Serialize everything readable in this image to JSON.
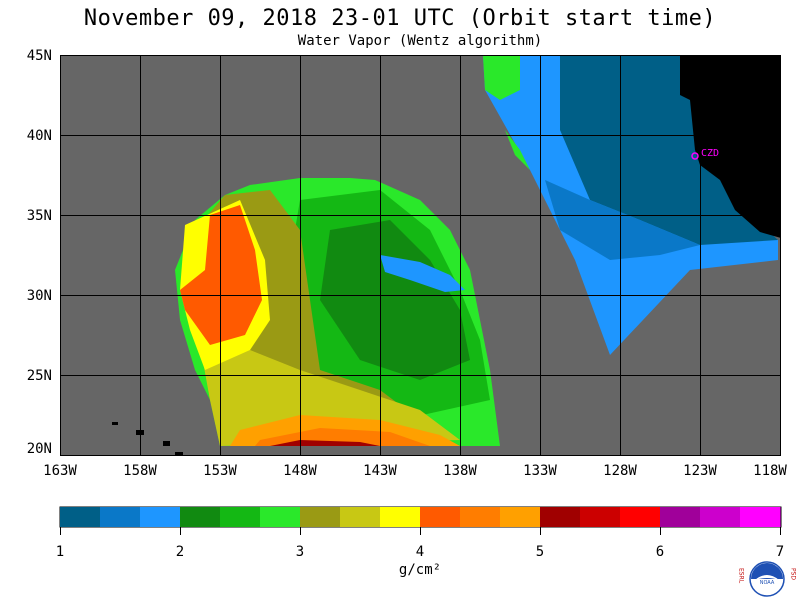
{
  "title": "November 09, 2018  23-01 UTC  (Orbit start time)",
  "subtitle": "Water Vapor (Wentz algorithm)",
  "map": {
    "lat_labels": [
      "45N",
      "40N",
      "35N",
      "30N",
      "25N",
      "20N"
    ],
    "lon_labels": [
      "163W",
      "158W",
      "153W",
      "148W",
      "143W",
      "138W",
      "133W",
      "128W",
      "123W",
      "118W"
    ],
    "station_label": "CZD",
    "colors": {
      "no_data": "#666666",
      "land": "#000000",
      "grid": "#000000",
      "station": "#ff00ff"
    }
  },
  "colorbar": {
    "labels": [
      "1",
      "2",
      "3",
      "4",
      "5",
      "6",
      "7"
    ],
    "units": "g/cm²",
    "colors": [
      "#005f87",
      "#0a78c8",
      "#1e96ff",
      "#118a11",
      "#14b814",
      "#2ae82a",
      "#9a9a14",
      "#c8c814",
      "#ffff00",
      "#ff5a00",
      "#ff7d00",
      "#ffa000",
      "#a00000",
      "#cc0000",
      "#ff0000",
      "#a0009a",
      "#cc00cc",
      "#ff00ff"
    ]
  },
  "logo": {
    "left_letters": "ESRL",
    "right_letters": "PSD",
    "center_text": "NOAA"
  }
}
